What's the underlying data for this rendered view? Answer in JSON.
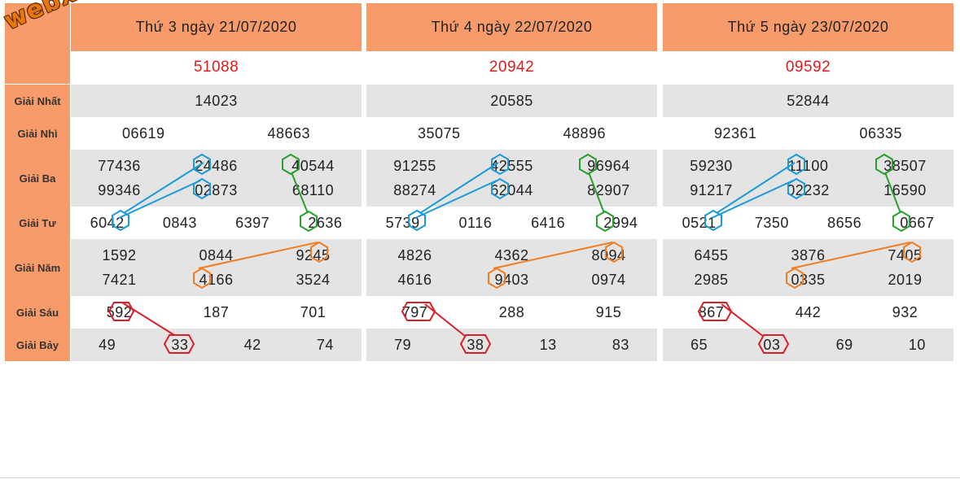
{
  "logo": "webxoso.net",
  "row_labels": [
    "Giải Nhất",
    "Giải Nhì",
    "Giải Ba",
    "Giải Tư",
    "Giải Năm",
    "Giải Sáu",
    "Giải Bảy"
  ],
  "columns": [
    {
      "header": "Thứ 3 ngày 21/07/2020",
      "special": "51088",
      "nhat": "14023",
      "nhi": [
        "06619",
        "48663"
      ],
      "ba": [
        [
          "77436",
          "24486",
          "40544"
        ],
        [
          "99346",
          "02873",
          "68110"
        ]
      ],
      "tu": [
        "6042",
        "0843",
        "6397",
        "2636"
      ],
      "nam": [
        [
          "1592",
          "0844",
          "9245"
        ],
        [
          "7421",
          "4166",
          "3524"
        ]
      ],
      "sau": [
        "592",
        "187",
        "701"
      ],
      "bay": [
        "49",
        "33",
        "42",
        "74"
      ]
    },
    {
      "header": "Thứ 4 ngày 22/07/2020",
      "special": "20942",
      "nhat": "20585",
      "nhi": [
        "35075",
        "48896"
      ],
      "ba": [
        [
          "91255",
          "42555",
          "96964"
        ],
        [
          "88274",
          "62044",
          "82907"
        ]
      ],
      "tu": [
        "5739",
        "0116",
        "6416",
        "2994"
      ],
      "nam": [
        [
          "4826",
          "4362",
          "8094"
        ],
        [
          "4616",
          "9403",
          "0974"
        ]
      ],
      "sau": [
        "797",
        "288",
        "915"
      ],
      "bay": [
        "79",
        "38",
        "13",
        "83"
      ]
    },
    {
      "header": "Thứ 5 ngày 23/07/2020",
      "special": "09592",
      "nhat": "52844",
      "nhi": [
        "92361",
        "06335"
      ],
      "ba": [
        [
          "59230",
          "11100",
          "38507"
        ],
        [
          "91217",
          "02232",
          "16590"
        ]
      ],
      "tu": [
        "0521",
        "7350",
        "8656",
        "0667"
      ],
      "nam": [
        [
          "6455",
          "3876",
          "7405"
        ],
        [
          "2985",
          "0335",
          "2019"
        ]
      ],
      "sau": [
        "867",
        "442",
        "932"
      ],
      "bay": [
        "65",
        "03",
        "69",
        "10"
      ]
    }
  ],
  "colors": {
    "header_bg": "#f79b6a",
    "special_text": "#e01b1b",
    "blue_mark": "#1a9ad6",
    "green_mark": "#27a02d",
    "orange_mark": "#f07d22",
    "red_mark": "#d9202a"
  }
}
